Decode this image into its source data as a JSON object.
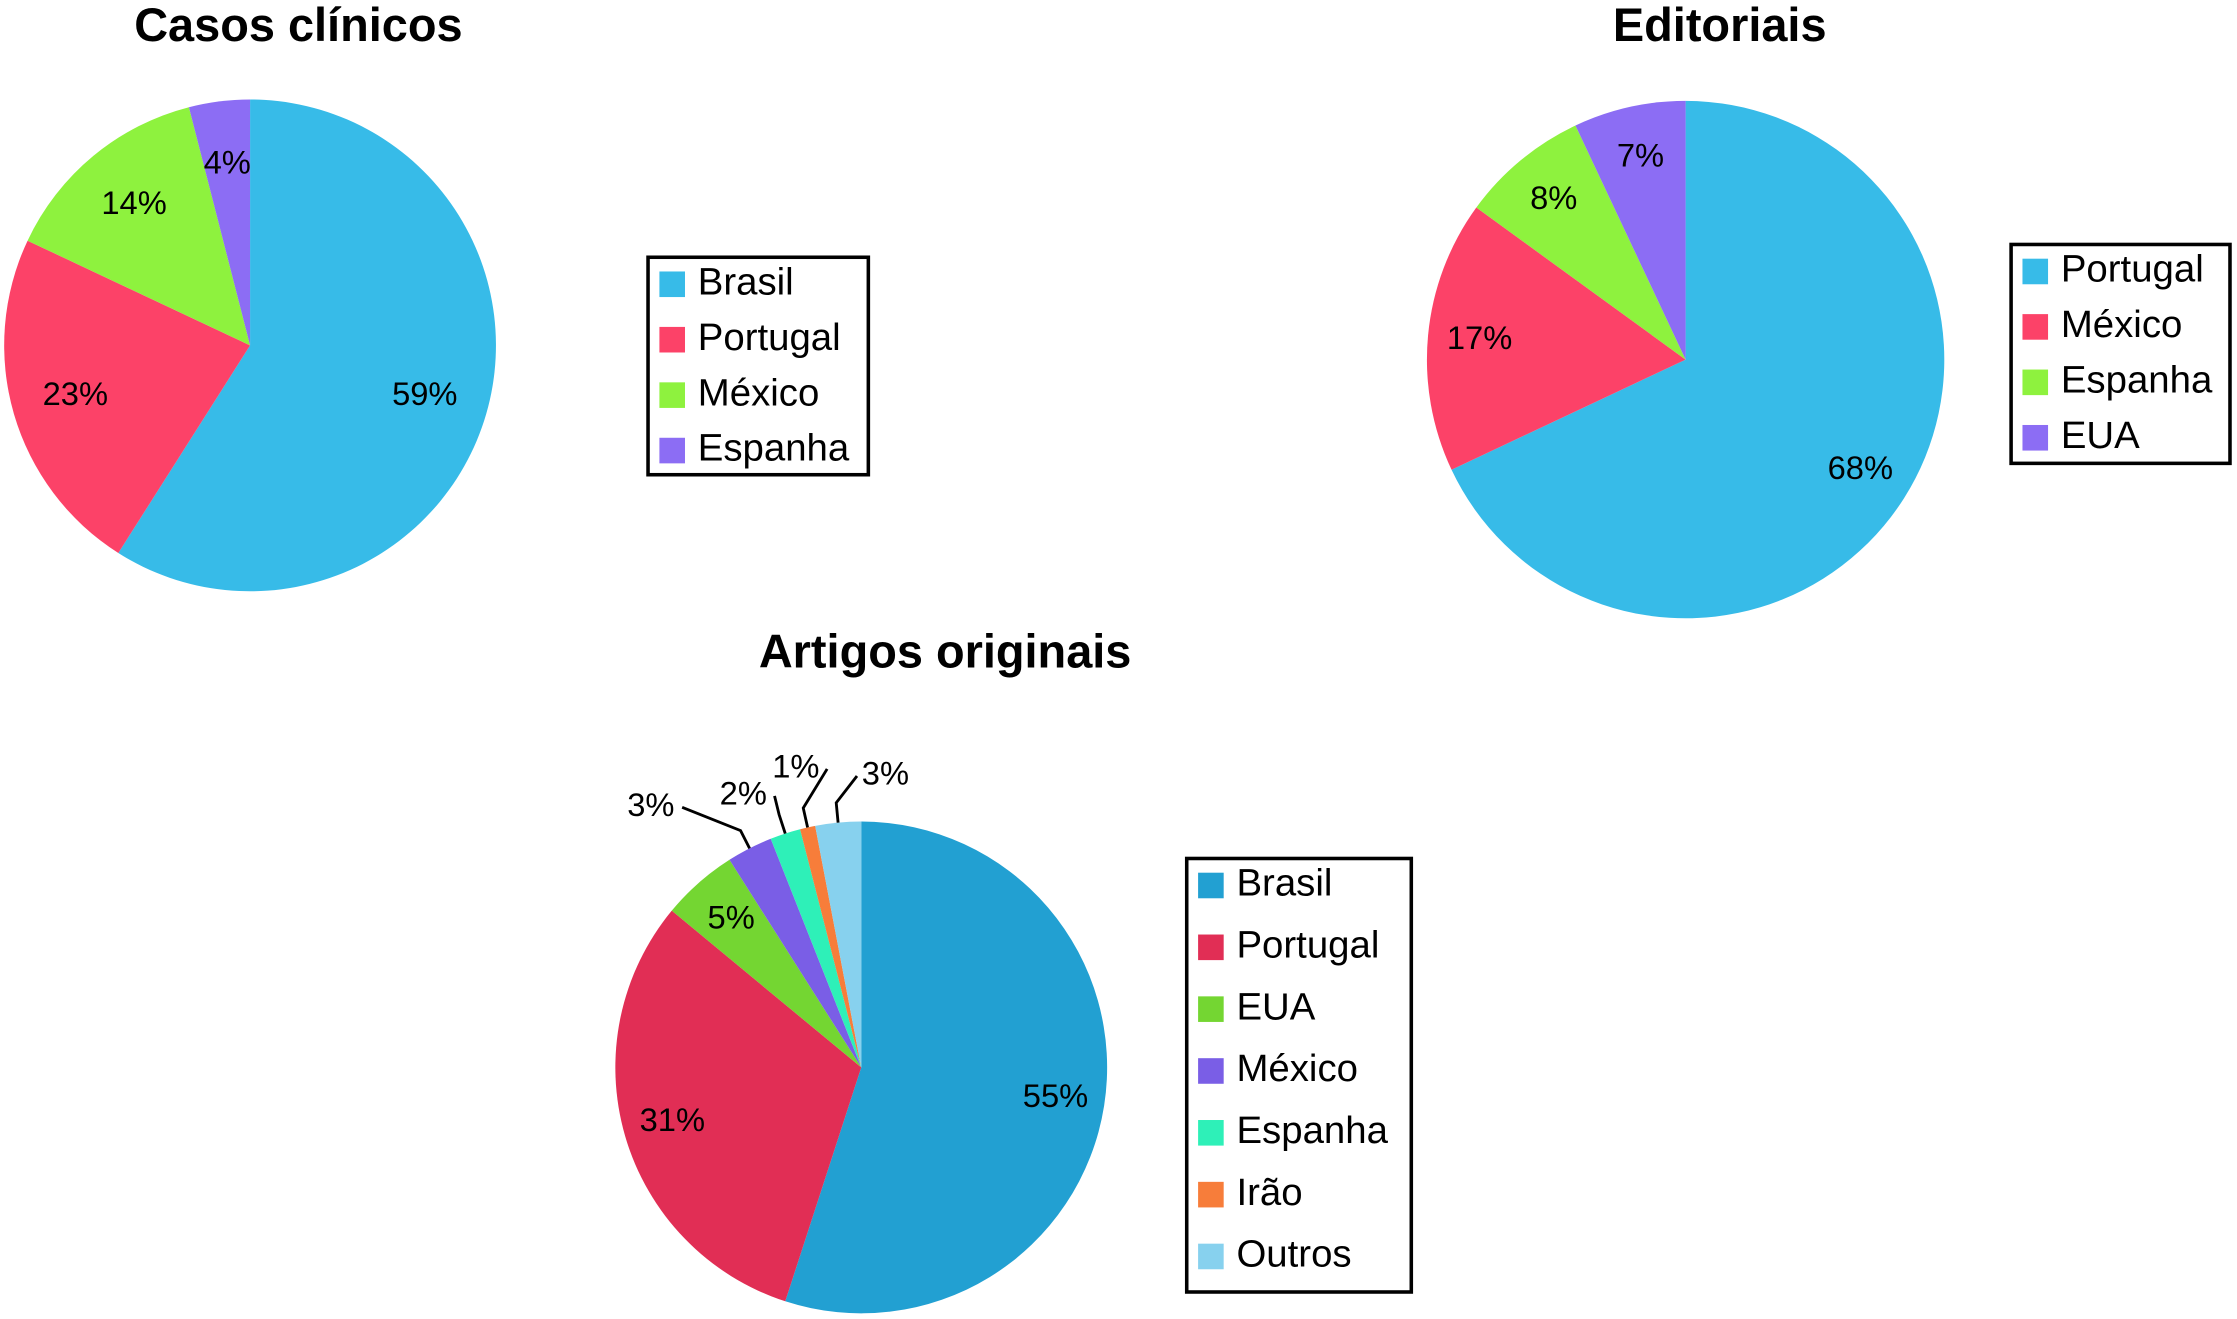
{
  "chart_data": [
    {
      "type": "pie",
      "title": "Casos clínicos",
      "categories": [
        "Brasil",
        "Portugal",
        "México",
        "Espanha"
      ],
      "values": [
        59,
        23,
        14,
        4
      ],
      "value_labels": [
        "59%",
        "23%",
        "14%",
        "4%"
      ],
      "colors": [
        "#37bbe8",
        "#fc4268",
        "#8ef23e",
        "#8c6df4"
      ]
    },
    {
      "type": "pie",
      "title": "Editoriais",
      "categories": [
        "Portugal",
        "México",
        "Espanha",
        "EUA"
      ],
      "values": [
        68,
        17,
        8,
        7
      ],
      "value_labels": [
        "68%",
        "17%",
        "8%",
        "7%"
      ],
      "colors": [
        "#37bbe8",
        "#fc4268",
        "#8ef23e",
        "#8c6df4"
      ]
    },
    {
      "type": "pie",
      "title": "Artigos originais",
      "categories": [
        "Brasil",
        "Portugal",
        "EUA",
        "México",
        "Espanha",
        "Irão",
        "Outros"
      ],
      "values": [
        55,
        31,
        5,
        3,
        2,
        1,
        3
      ],
      "value_labels": [
        "55%",
        "31%",
        "5%",
        "3%",
        "2%",
        "1%",
        "3%"
      ],
      "colors": [
        "#22a0d2",
        "#e12e55",
        "#74d632",
        "#7a5ee6",
        "#2ef0b8",
        "#f77d3a",
        "#87d1ee"
      ]
    }
  ]
}
